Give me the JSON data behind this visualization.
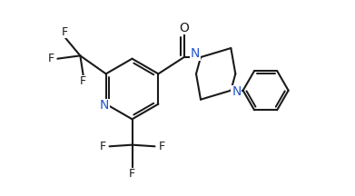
{
  "bg_color": "#ffffff",
  "line_color": "#1a1a1a",
  "text_color": "#1a1a1a",
  "n_color": "#2255cc",
  "bond_lw": 1.5,
  "figsize": [
    3.91,
    2.16
  ],
  "dpi": 100,
  "xlim": [
    -2.5,
    6.5
  ],
  "ylim": [
    -3.2,
    3.2
  ]
}
